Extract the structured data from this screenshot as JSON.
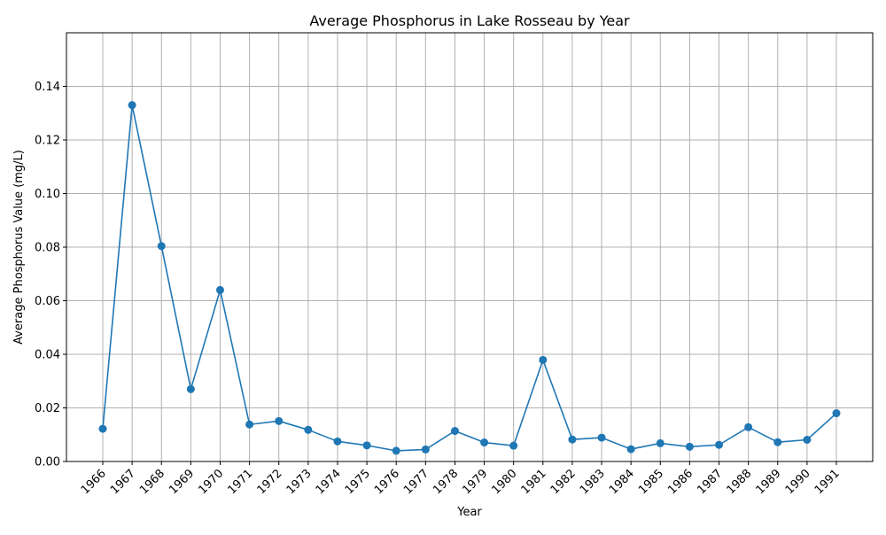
{
  "chart_data": {
    "type": "line",
    "title": "Average Phosphorus in Lake Rosseau by Year",
    "xlabel": "Year",
    "ylabel": "Average Phosphorus Value (mg/L)",
    "categories": [
      "1966",
      "1967",
      "1968",
      "1969",
      "1970",
      "1971",
      "1972",
      "1973",
      "1974",
      "1975",
      "1976",
      "1977",
      "1978",
      "1979",
      "1980",
      "1981",
      "1982",
      "1983",
      "1984",
      "1985",
      "1986",
      "1987",
      "1988",
      "1989",
      "1990",
      "1991"
    ],
    "series": [
      {
        "values": [
          0.0122,
          0.133,
          0.0804,
          0.027,
          0.064,
          0.0138,
          0.0151,
          0.0118,
          0.0075,
          0.006,
          0.004,
          0.0045,
          0.0114,
          0.0071,
          0.0059,
          0.0379,
          0.0082,
          0.0089,
          0.0046,
          0.0068,
          0.0055,
          0.0062,
          0.0128,
          0.0072,
          0.0081,
          0.018
        ],
        "color": "#1f77b4"
      }
    ],
    "ylim": [
      0,
      0.16
    ],
    "yticks": [
      "0.00",
      "0.02",
      "0.04",
      "0.06",
      "0.08",
      "0.10",
      "0.12",
      "0.14"
    ],
    "grid": true,
    "legend": "none"
  }
}
